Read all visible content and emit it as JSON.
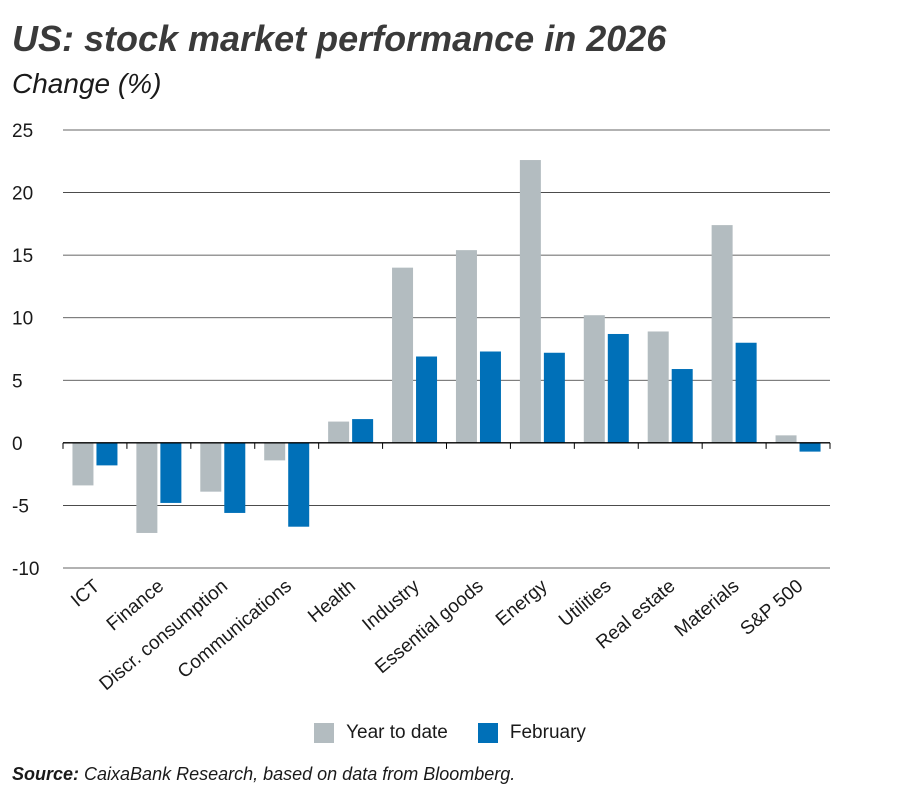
{
  "title": "US: stock market performance in 2026",
  "subtitle": "Change (%)",
  "source": {
    "label": "Source:",
    "text": " CaixaBank Research, based on data from Bloomberg."
  },
  "colors": {
    "ytd": "#b3bcc0",
    "february": "#0070b8",
    "grid": "#333333"
  },
  "chart_data": {
    "type": "bar",
    "categories": [
      "ICT",
      "Finance",
      "Discr. consumption",
      "Communications",
      "Health",
      "Industry",
      "Essential goods",
      "Energy",
      "Utilities",
      "Real estate",
      "Materials",
      "S&P 500"
    ],
    "series": [
      {
        "name": "Year to date",
        "values": [
          -3.4,
          -7.2,
          -3.9,
          -1.4,
          1.7,
          14.0,
          15.4,
          22.6,
          10.2,
          8.9,
          17.4,
          0.6
        ]
      },
      {
        "name": "February",
        "values": [
          -1.8,
          -4.8,
          -5.6,
          -6.7,
          1.9,
          6.9,
          7.3,
          7.2,
          8.7,
          5.9,
          8.0,
          -0.7
        ]
      }
    ],
    "yticks": [
      -10,
      -5,
      0,
      5,
      10,
      15,
      20,
      25
    ],
    "ylim": [
      -10,
      25
    ],
    "grid": true,
    "legend": "bottom"
  }
}
